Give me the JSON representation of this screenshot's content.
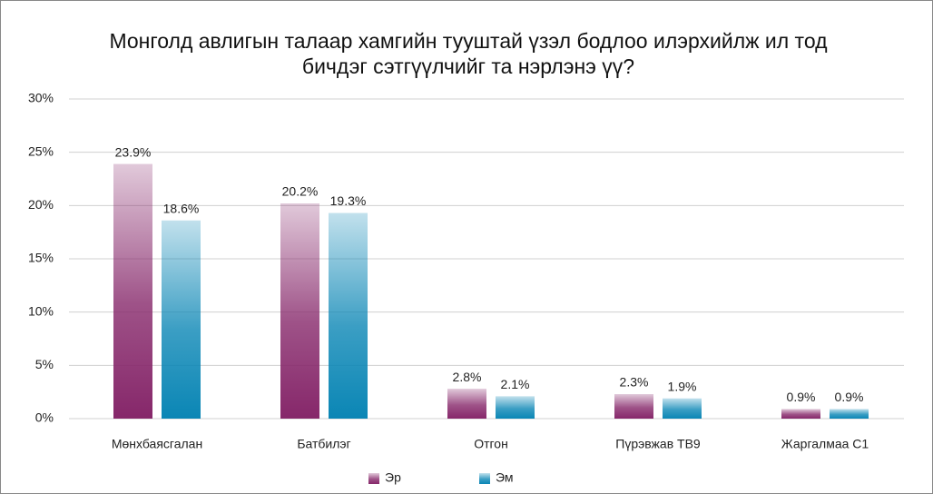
{
  "chart_data": {
    "type": "bar",
    "title": "Монголд авлигын талаар хамгийн тууштай үзэл бодлоо илэрхийлж ил тод бичдэг сэтгүүлчийг та нэрлэнэ үү?",
    "categories": [
      "Мөнхбаясгалан",
      "Батбилэг",
      "Отгон",
      "Пүрэвжав ТВ9",
      "Жаргалмаа С1"
    ],
    "series": [
      {
        "name": "Эр",
        "color": "#86276a",
        "values": [
          23.9,
          20.2,
          2.8,
          2.3,
          0.9
        ],
        "value_labels": [
          "23.9%",
          "20.2%",
          "2.8%",
          "2.3%",
          "0.9%"
        ]
      },
      {
        "name": "Эм",
        "color": "#0a86b5",
        "values": [
          18.6,
          19.3,
          2.1,
          1.9,
          0.9
        ],
        "value_labels": [
          "18.6%",
          "19.3%",
          "2.1%",
          "1.9%",
          "0.9%"
        ]
      }
    ],
    "ylim": [
      0,
      30
    ],
    "yticks": [
      {
        "value": 0,
        "label": "0%"
      },
      {
        "value": 5,
        "label": "5%"
      },
      {
        "value": 10,
        "label": "10%"
      },
      {
        "value": 15,
        "label": "15%"
      },
      {
        "value": 20,
        "label": "20%"
      },
      {
        "value": 25,
        "label": "25%"
      },
      {
        "value": 30,
        "label": "30%"
      }
    ],
    "grid": true,
    "legend": "bottom"
  }
}
